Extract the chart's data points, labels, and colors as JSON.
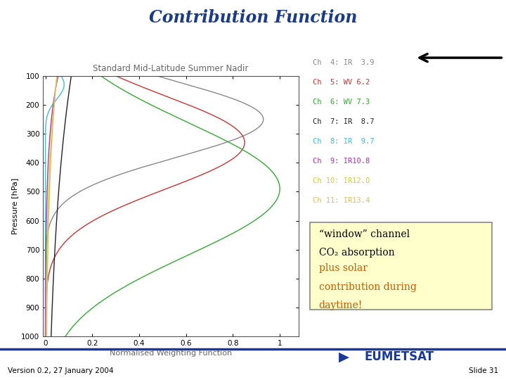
{
  "title": "Contribution Function",
  "title_color": "#1a3a8a",
  "subtitle": "Standard Mid-Latitude Summer Nadir",
  "xlabel": "Normalised Weighting Function",
  "ylabel": "Pressure [hPa]",
  "background_color": "#ffffff",
  "legend_entries": [
    {
      "label": "Ch  4: IR  3.9",
      "color": "#888888"
    },
    {
      "label": "Ch  5: WV 6.2",
      "color": "#cc3333"
    },
    {
      "label": "Ch  6: WV 7.3",
      "color": "#33aa33"
    },
    {
      "label": "Ch  7: IR  8.7",
      "color": "#222222"
    },
    {
      "label": "Ch  8: IR  9.7",
      "color": "#44bbdd"
    },
    {
      "label": "Ch  9: IR10.8",
      "color": "#aa33aa"
    },
    {
      "label": "Ch 10: IR12.0",
      "color": "#cccc44"
    },
    {
      "label": "Ch 11: IR13.4",
      "color": "#ddbb66"
    }
  ],
  "annotation_line1": "“window” channel",
  "annotation_line2": "CO₂ absorption",
  "annotation_line3": "plus solar",
  "annotation_line4": "contribution during",
  "annotation_line5": "daytime!",
  "annotation_color_black": "#000000",
  "annotation_color_orange": "#cc5500",
  "annotation_bg": "#ffffcc",
  "annotation_border": "#888888",
  "arrow_color": "#000000",
  "bottom_line_color": "#1a3a99",
  "version_text": "Version 0.2, 27 January 2004",
  "slide_text": "Slide 31",
  "eumetsat_color": "#1a3a99"
}
